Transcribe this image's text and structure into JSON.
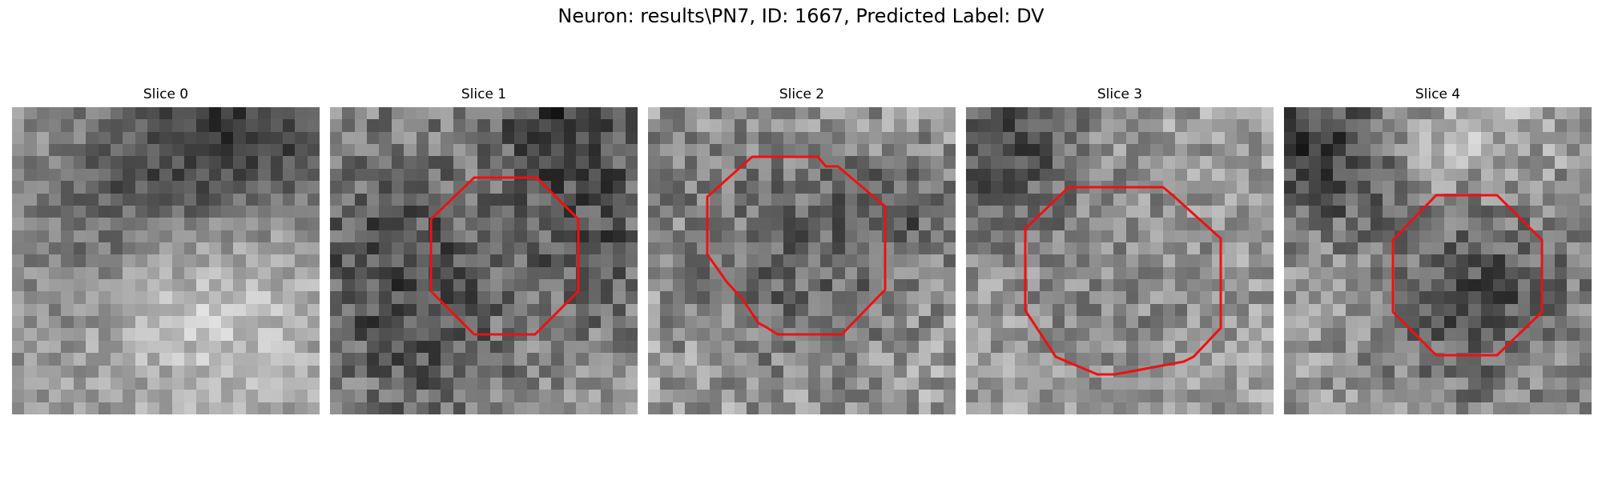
{
  "figure": {
    "title": "Neuron: results\\PN7, ID: 1667, Predicted Label: DV"
  },
  "panels": [
    {
      "title": "Slice 0",
      "has_outline": false
    },
    {
      "title": "Slice 1",
      "has_outline": true
    },
    {
      "title": "Slice 2",
      "has_outline": true
    },
    {
      "title": "Slice 3",
      "has_outline": true
    },
    {
      "title": "Slice 4",
      "has_outline": true
    }
  ],
  "colors": {
    "outline": "#ee1111",
    "background": "#ffffff"
  }
}
